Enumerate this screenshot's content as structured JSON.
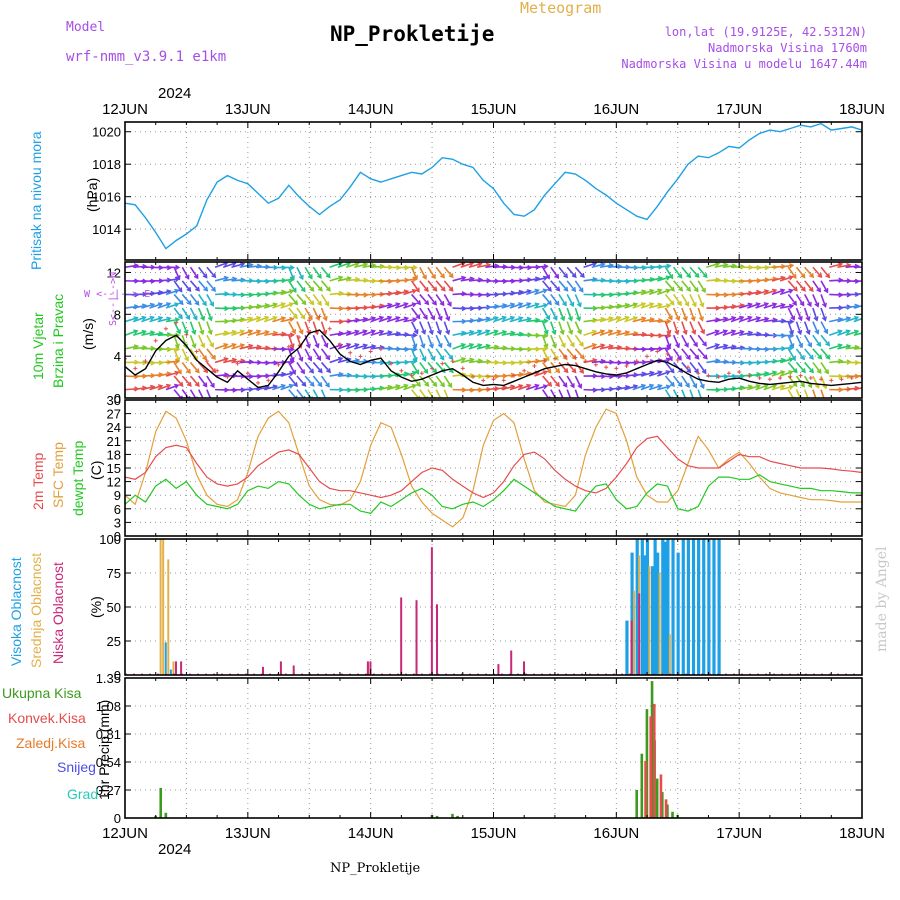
{
  "header": {
    "model_label": "Model",
    "model_name": "wrf-nmm_v3.9.1  e1km",
    "title": "NP_Prokletije",
    "meteogram_label": "Meteogram",
    "lonlat": "lon,lat (19.9125E, 42.5312N)",
    "altitude": "Nadmorska Visina 1760m",
    "model_altitude": "Nadmorska Visina u modelu 1647.44m"
  },
  "footer": {
    "station": "NP_Prokletije",
    "credit": "made by Angel"
  },
  "colors": {
    "pressure": "#1ea0e6",
    "temp2m": "#e64c4c",
    "sfc": "#e2a03c",
    "dewpt": "#22c822",
    "high_cloud": "#1ea0e6",
    "mid_cloud": "#e2b04a",
    "low_cloud": "#c8287a",
    "total_precip": "#3c9a1e",
    "convective": "#e64c4c",
    "freezing": "#e67a28",
    "snow": "#4c4ce6",
    "hail": "#28c8b4",
    "wind_label": "#22c822",
    "wind_dir": "#b450dc",
    "credit": "#c8c8c8"
  },
  "chart_data": [
    {
      "type": "line",
      "id": "pressure",
      "ylabel_colored": "Pritisak na nivou mora",
      "unit": "(hPa)",
      "ylim": [
        1012.1,
        1020.6
      ],
      "yticks": [
        1014,
        1016,
        1018,
        1020
      ],
      "x_start": "2024-06-12T00:00",
      "x_end": "2024-06-18T00:00",
      "xticks": [
        "12JUN",
        "13JUN",
        "14JUN",
        "15JUN",
        "16JUN",
        "17JUN",
        "18JUN"
      ],
      "year": "2024",
      "grid": true,
      "series": [
        {
          "x_hours": [
            0,
            2,
            4,
            6,
            8,
            10,
            12,
            14,
            16,
            18,
            20,
            22,
            24,
            26,
            28,
            30,
            32,
            34,
            36,
            38,
            40,
            42,
            44,
            46,
            48,
            50,
            52,
            54,
            56,
            58,
            60,
            62,
            64,
            66,
            68,
            70,
            72,
            74,
            76,
            78,
            80,
            82,
            84,
            86,
            88,
            90,
            92,
            94,
            96,
            98,
            100,
            102,
            104,
            106,
            108,
            110,
            112,
            114,
            116,
            118,
            120,
            122,
            124,
            126,
            128,
            130,
            132,
            134,
            136,
            138,
            140,
            142,
            144
          ],
          "values": [
            1015.6,
            1015.5,
            1014.7,
            1013.8,
            1012.8,
            1013.3,
            1013.7,
            1014.2,
            1015.8,
            1016.9,
            1017.3,
            1017.0,
            1016.8,
            1016.2,
            1015.6,
            1015.9,
            1016.7,
            1016.0,
            1015.4,
            1014.9,
            1015.4,
            1015.8,
            1016.6,
            1017.5,
            1017.1,
            1016.9,
            1017.1,
            1017.3,
            1017.5,
            1017.4,
            1017.8,
            1018.4,
            1018.3,
            1018.0,
            1017.8,
            1017.0,
            1016.5,
            1015.6,
            1014.9,
            1014.8,
            1015.2,
            1016.1,
            1016.8,
            1017.5,
            1017.4,
            1017.0,
            1016.5,
            1016.1,
            1015.6,
            1015.2,
            1014.8,
            1014.6,
            1015.4,
            1016.3,
            1017.1,
            1018.0,
            1018.5,
            1018.4,
            1018.7,
            1019.1,
            1019.0,
            1019.5,
            1019.9,
            1020.1,
            1020.0,
            1020.2,
            1020.4,
            1020.3,
            1020.5,
            1020.1,
            1020.2,
            1020.3,
            1020.1
          ]
        }
      ]
    },
    {
      "type": "wind",
      "id": "wind",
      "ylabel_1": "10m Vjetar",
      "ylabel_2": "Brzina i Pravac",
      "unit": "(m/s)",
      "compass": {
        "n": "N",
        "s": "S",
        "e": "E",
        "w": "W",
        "arrow_left": "<--",
        "arrow_right": "-->"
      },
      "ylim": [
        0,
        13
      ],
      "yticks": [
        0,
        4,
        8,
        12
      ],
      "grid": true,
      "series": [
        {
          "name": "speed",
          "x_hours": [
            0,
            2,
            4,
            6,
            8,
            10,
            12,
            14,
            16,
            18,
            20,
            22,
            24,
            26,
            28,
            30,
            32,
            34,
            36,
            38,
            40,
            42,
            44,
            46,
            48,
            50,
            52,
            54,
            56,
            58,
            60,
            62,
            64,
            66,
            68,
            70,
            72,
            74,
            76,
            78,
            80,
            82,
            84,
            86,
            88,
            90,
            92,
            94,
            96,
            98,
            100,
            102,
            104,
            106,
            108,
            110,
            112,
            114,
            116,
            118,
            120,
            122,
            124,
            126,
            128,
            130,
            132,
            134,
            136,
            138,
            140,
            142,
            144
          ],
          "values": [
            3.0,
            2.2,
            2.8,
            4.5,
            5.5,
            6.0,
            5.0,
            3.6,
            2.8,
            2.0,
            1.5,
            2.6,
            1.8,
            1.0,
            1.2,
            2.5,
            4.0,
            4.8,
            6.2,
            6.5,
            5.5,
            4.2,
            3.5,
            3.2,
            3.6,
            3.8,
            2.6,
            2.0,
            1.6,
            1.8,
            2.2,
            2.6,
            2.8,
            2.2,
            1.5,
            1.2,
            1.3,
            1.2,
            1.6,
            2.0,
            2.4,
            2.8,
            3.0,
            3.2,
            3.1,
            2.8,
            2.5,
            2.3,
            2.2,
            2.4,
            2.8,
            3.2,
            3.6,
            3.4,
            2.9,
            2.3,
            1.8,
            1.6,
            1.5,
            1.8,
            1.9,
            1.6,
            1.4,
            1.3,
            1.4,
            1.5,
            1.6,
            1.4,
            1.3,
            1.2,
            1.3,
            1.4,
            1.5
          ]
        }
      ]
    },
    {
      "type": "line",
      "id": "temperature",
      "ylabel_1": "2m Temp",
      "ylabel_2": "SFC Temp",
      "ylabel_3": "dewpt Temp",
      "unit": "(C)",
      "ylim": [
        0,
        30
      ],
      "yticks": [
        0,
        3,
        6,
        9,
        12,
        15,
        18,
        21,
        24,
        27,
        30
      ],
      "grid": true,
      "series": [
        {
          "name": "2m Temp",
          "x_hours": [
            0,
            2,
            4,
            6,
            8,
            10,
            12,
            14,
            16,
            18,
            20,
            22,
            24,
            26,
            28,
            30,
            32,
            34,
            36,
            38,
            40,
            42,
            44,
            46,
            48,
            50,
            52,
            54,
            56,
            58,
            60,
            62,
            64,
            66,
            68,
            70,
            72,
            74,
            76,
            78,
            80,
            82,
            84,
            86,
            88,
            90,
            92,
            94,
            96,
            98,
            100,
            102,
            104,
            106,
            108,
            110,
            112,
            114,
            116,
            118,
            120,
            122,
            124,
            126,
            128,
            130,
            132,
            134,
            136,
            138,
            140,
            142,
            144
          ],
          "values": [
            13.0,
            12.5,
            14.0,
            17.5,
            19.5,
            20.0,
            19.5,
            16.0,
            13.0,
            11.5,
            11.0,
            11.5,
            13.0,
            15.5,
            17.0,
            18.5,
            19.0,
            18.0,
            15.0,
            12.0,
            10.5,
            10.0,
            10.0,
            9.5,
            9.0,
            8.5,
            9.0,
            10.0,
            12.0,
            14.0,
            15.0,
            14.5,
            12.5,
            11.0,
            9.5,
            8.5,
            9.5,
            12.0,
            15.5,
            18.0,
            18.5,
            17.0,
            14.5,
            12.5,
            11.0,
            10.0,
            9.5,
            10.5,
            13.0,
            16.0,
            19.5,
            21.5,
            22.0,
            19.5,
            17.0,
            15.5,
            15.0,
            15.0,
            15.0,
            16.5,
            18.0,
            17.5,
            17.5,
            16.5,
            16.0,
            15.5,
            15.0,
            15.0,
            15.0,
            14.8,
            14.5,
            14.3,
            14.0
          ]
        },
        {
          "name": "SFC Temp",
          "x_hours": [
            0,
            2,
            4,
            6,
            8,
            10,
            12,
            14,
            16,
            18,
            20,
            22,
            24,
            26,
            28,
            30,
            32,
            34,
            36,
            38,
            40,
            42,
            44,
            46,
            48,
            50,
            52,
            54,
            56,
            58,
            60,
            62,
            64,
            66,
            68,
            70,
            72,
            74,
            76,
            78,
            80,
            82,
            84,
            86,
            88,
            90,
            92,
            94,
            96,
            98,
            100,
            102,
            104,
            106,
            108,
            110,
            112,
            114,
            116,
            118,
            120,
            122,
            124,
            126,
            128,
            130,
            132,
            134,
            136,
            138,
            140,
            142,
            144
          ],
          "values": [
            9.0,
            7.0,
            14.0,
            23.0,
            27.5,
            26.0,
            21.0,
            13.5,
            9.0,
            7.0,
            6.5,
            8.0,
            14.0,
            22.0,
            26.0,
            27.5,
            25.0,
            18.0,
            11.0,
            8.0,
            7.0,
            6.8,
            8.0,
            12.0,
            20.0,
            25.0,
            24.0,
            18.0,
            11.0,
            7.5,
            5.0,
            3.5,
            2.0,
            4.0,
            10.0,
            20.0,
            25.5,
            27.0,
            25.0,
            17.0,
            10.0,
            7.5,
            7.0,
            6.5,
            9.0,
            18.0,
            24.0,
            28.0,
            27.0,
            21.0,
            13.0,
            9.0,
            7.5,
            7.5,
            10.0,
            16.0,
            22.0,
            19.0,
            15.0,
            17.0,
            18.5,
            16.0,
            13.0,
            10.5,
            9.5,
            9.0,
            8.5,
            8.0,
            8.0,
            7.8,
            7.5,
            7.5,
            7.5
          ]
        },
        {
          "name": "dewpt Temp",
          "x_hours": [
            0,
            2,
            4,
            6,
            8,
            10,
            12,
            14,
            16,
            18,
            20,
            22,
            24,
            26,
            28,
            30,
            32,
            34,
            36,
            38,
            40,
            42,
            44,
            46,
            48,
            50,
            52,
            54,
            56,
            58,
            60,
            62,
            64,
            66,
            68,
            70,
            72,
            74,
            76,
            78,
            80,
            82,
            84,
            86,
            88,
            90,
            92,
            94,
            96,
            98,
            100,
            102,
            104,
            106,
            108,
            110,
            112,
            114,
            116,
            118,
            120,
            122,
            124,
            126,
            128,
            130,
            132,
            134,
            136,
            138,
            140,
            142,
            144
          ],
          "values": [
            7.0,
            9.0,
            7.5,
            11.0,
            12.5,
            10.5,
            12.0,
            9.0,
            7.0,
            6.5,
            6.0,
            7.0,
            10.0,
            11.0,
            10.5,
            12.0,
            11.5,
            9.0,
            7.0,
            6.0,
            6.5,
            7.0,
            7.0,
            5.5,
            5.0,
            7.5,
            6.5,
            8.0,
            9.5,
            10.5,
            9.0,
            6.5,
            6.0,
            7.0,
            7.5,
            6.5,
            8.0,
            10.0,
            12.5,
            11.0,
            9.5,
            8.0,
            6.5,
            6.0,
            5.5,
            8.5,
            11.0,
            11.5,
            8.0,
            6.0,
            6.5,
            9.5,
            11.5,
            11.0,
            6.0,
            5.5,
            6.5,
            11.0,
            13.0,
            13.0,
            12.5,
            12.5,
            13.5,
            12.0,
            11.5,
            11.0,
            10.5,
            10.5,
            10.0,
            10.0,
            9.8,
            9.5,
            9.5
          ]
        }
      ]
    },
    {
      "type": "bar",
      "id": "cloud",
      "ylabel_1": "Visoka Oblacnost",
      "ylabel_2": "Srednja Oblacnost",
      "ylabel_3": "Niska Oblacnost",
      "unit": "(%)",
      "ylim": [
        0,
        100
      ],
      "yticks": [
        0,
        25,
        50,
        75,
        100
      ],
      "grid": true,
      "series": [
        {
          "name": "Visoka Oblacnost",
          "x_hours": [
            8,
            9,
            98,
            99,
            100,
            101,
            101.5,
            102,
            103,
            103.5,
            104,
            105,
            105.5,
            106,
            107,
            108,
            109,
            110,
            111,
            112,
            113,
            114,
            115,
            116
          ],
          "values": [
            24,
            4,
            40,
            90,
            100,
            100,
            88,
            100,
            80,
            100,
            90,
            100,
            98,
            100,
            100,
            90,
            100,
            100,
            100,
            100,
            100,
            100,
            100,
            100
          ]
        },
        {
          "name": "Srednja Oblacnost",
          "x_hours": [
            7,
            7.5,
            8.5,
            9.5,
            47.5,
            99.5,
            100.5,
            102.5,
            104.5,
            106.5
          ],
          "values": [
            100,
            100,
            85,
            10,
            8,
            62,
            88,
            80,
            75,
            30
          ]
        },
        {
          "name": "Niska Oblacnost",
          "x_hours": [
            10,
            11,
            27,
            30.5,
            33,
            47.5,
            48,
            54,
            57,
            60,
            61,
            73,
            75.5,
            78,
            99,
            100.5
          ],
          "values": [
            10,
            10,
            6,
            10,
            7,
            10,
            10,
            57,
            55,
            94,
            52,
            8,
            18,
            10,
            40,
            60
          ]
        }
      ]
    },
    {
      "type": "bar",
      "id": "precip",
      "legend_total": "Ukupna  Kisa",
      "legend_convective": "Konvek.Kisa",
      "legend_freezing": "Zaledj.Kisa",
      "legend_snow": "Snijeg",
      "legend_hail": "Grad",
      "unit_label": "1hr Precip (mm)",
      "ylim": [
        0,
        1.35
      ],
      "yticks": [
        0,
        0.27,
        0.54,
        0.81,
        1.08,
        1.35
      ],
      "grid": true,
      "series": [
        {
          "name": "Ukupna  Kisa",
          "x_hours": [
            6,
            7,
            8,
            60,
            61,
            64,
            65,
            100,
            101,
            102,
            103,
            103.5,
            104,
            105,
            106,
            107,
            108
          ],
          "values": [
            0.02,
            0.29,
            0.05,
            0.03,
            0.02,
            0.04,
            0.02,
            0.27,
            0.62,
            1.05,
            1.32,
            0.75,
            0.38,
            0.25,
            0.13,
            0.06,
            0.03
          ]
        },
        {
          "name": "Konvek.Kisa",
          "x_hours": [
            101.5,
            102.5,
            103.2,
            104.5,
            105.5
          ],
          "values": [
            0.55,
            0.98,
            1.1,
            0.42,
            0.18
          ]
        }
      ]
    }
  ]
}
